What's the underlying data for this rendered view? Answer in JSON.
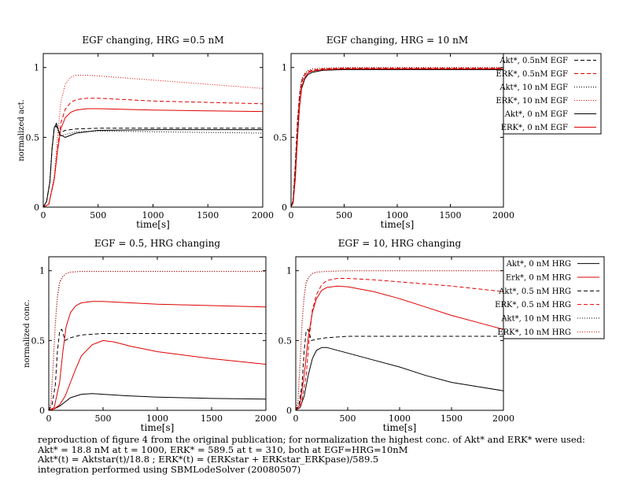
{
  "colors": {
    "black": "#000000",
    "red": "#e00000"
  },
  "caption": {
    "line1": "reproduction of figure 4 from the original publication; for normalization the highest conc. of Akt* and ERK* were used:",
    "line2": "Akt* = 18.8 nM at t = 1000, ERK* = 589.5 at t = 310, both at EGF=HRG=10nM",
    "line3": "Akt*(t) = Aktstar(t)/18.8 ; ERK*(t) = (ERKstar + ERKstar_ERKpase)/589.5",
    "line4": "integration performed using SBMLodeSolver (20080507)"
  },
  "chart_data": [
    {
      "type": "line",
      "title": "EGF changing, HRG =0.5 nM",
      "xlabel": "time[s]",
      "ylabel": "normalized act.",
      "xlim": [
        0,
        2000
      ],
      "ylim": [
        0,
        1.1
      ],
      "xticks": [
        0,
        500,
        1000,
        1500,
        2000
      ],
      "yticks": [
        0,
        0.5,
        1
      ],
      "yticklabels": [
        "0",
        "0.5",
        "1"
      ],
      "legend": "none",
      "series": [
        {
          "name": "Akt*, 0.5nM EGF",
          "color": "#000000",
          "style": "dashed",
          "x": [
            0,
            30,
            60,
            80,
            100,
            120,
            150,
            200,
            300,
            500,
            1000,
            1500,
            2000
          ],
          "y": [
            0,
            0.04,
            0.18,
            0.42,
            0.57,
            0.58,
            0.53,
            0.55,
            0.56,
            0.565,
            0.565,
            0.565,
            0.565
          ]
        },
        {
          "name": "ERK*, 0.5nM EGF",
          "color": "#e00000",
          "style": "dashed",
          "x": [
            0,
            50,
            100,
            130,
            160,
            200,
            250,
            300,
            400,
            500,
            750,
            1000,
            1500,
            2000
          ],
          "y": [
            0,
            0.02,
            0.2,
            0.42,
            0.6,
            0.7,
            0.75,
            0.77,
            0.78,
            0.78,
            0.77,
            0.76,
            0.75,
            0.74
          ]
        },
        {
          "name": "Akt*, 10 nM EGF",
          "color": "#000000",
          "style": "dotted",
          "x": [
            0,
            30,
            60,
            80,
            100,
            120,
            150,
            200,
            300,
            500,
            1000,
            1500,
            2000
          ],
          "y": [
            0,
            0.04,
            0.18,
            0.42,
            0.57,
            0.58,
            0.51,
            0.52,
            0.54,
            0.545,
            0.54,
            0.535,
            0.53
          ]
        },
        {
          "name": "ERK*, 10 nM EGF",
          "color": "#e00000",
          "style": "dotted",
          "x": [
            0,
            50,
            100,
            130,
            160,
            200,
            250,
            300,
            400,
            500,
            750,
            1000,
            1500,
            2000
          ],
          "y": [
            0,
            0.02,
            0.22,
            0.5,
            0.75,
            0.88,
            0.93,
            0.945,
            0.945,
            0.94,
            0.925,
            0.91,
            0.88,
            0.85
          ]
        },
        {
          "name": "Akt*, 0 nM EGF",
          "color": "#000000",
          "style": "solid",
          "x": [
            0,
            30,
            60,
            80,
            100,
            120,
            150,
            200,
            300,
            500,
            1000,
            1500,
            2000
          ],
          "y": [
            0,
            0.04,
            0.18,
            0.42,
            0.57,
            0.6,
            0.52,
            0.5,
            0.53,
            0.55,
            0.555,
            0.555,
            0.555
          ]
        },
        {
          "name": "ERK*, 0 nM EGF",
          "color": "#e00000",
          "style": "solid",
          "x": [
            0,
            50,
            100,
            130,
            160,
            200,
            250,
            300,
            400,
            500,
            750,
            1000,
            1500,
            2000
          ],
          "y": [
            0,
            0.02,
            0.2,
            0.4,
            0.56,
            0.64,
            0.68,
            0.695,
            0.705,
            0.705,
            0.7,
            0.695,
            0.69,
            0.685
          ]
        }
      ]
    },
    {
      "type": "line",
      "title": "EGF changing, HRG = 10 nM",
      "xlabel": "time[s]",
      "ylabel": "",
      "xlim": [
        0,
        2000
      ],
      "ylim": [
        0,
        1.1
      ],
      "xticks": [
        0,
        500,
        1000,
        1500,
        2000
      ],
      "yticks": [
        0,
        0.5,
        1
      ],
      "yticklabels": [
        "0",
        "0.5",
        "1"
      ],
      "legend": "right",
      "series": [
        {
          "name": "Akt*, 0.5nM EGF",
          "color": "#000000",
          "style": "dashed",
          "x": [
            0,
            20,
            40,
            60,
            80,
            100,
            130,
            160,
            200,
            300,
            500,
            1000,
            2000
          ],
          "y": [
            0,
            0.05,
            0.3,
            0.6,
            0.8,
            0.9,
            0.95,
            0.97,
            0.98,
            0.99,
            0.995,
            0.995,
            0.995
          ]
        },
        {
          "name": "ERK*, 0.5nM EGF",
          "color": "#e00000",
          "style": "dashed",
          "x": [
            0,
            20,
            40,
            60,
            80,
            100,
            130,
            160,
            200,
            300,
            500,
            1000,
            2000
          ],
          "y": [
            0,
            0.04,
            0.25,
            0.55,
            0.78,
            0.89,
            0.95,
            0.97,
            0.98,
            0.99,
            0.995,
            0.995,
            0.995
          ]
        },
        {
          "name": "Akt*, 10 nM EGF",
          "color": "#000000",
          "style": "dotted",
          "x": [
            0,
            20,
            40,
            60,
            80,
            100,
            130,
            160,
            200,
            300,
            500,
            1000,
            2000
          ],
          "y": [
            0,
            0.06,
            0.33,
            0.63,
            0.82,
            0.92,
            0.96,
            0.98,
            0.99,
            0.995,
            1.0,
            1.0,
            1.0
          ]
        },
        {
          "name": "ERK*, 10 nM EGF",
          "color": "#e00000",
          "style": "dotted",
          "x": [
            0,
            20,
            40,
            60,
            80,
            100,
            130,
            160,
            200,
            300,
            500,
            1000,
            2000
          ],
          "y": [
            0,
            0.05,
            0.3,
            0.6,
            0.8,
            0.91,
            0.96,
            0.98,
            0.99,
            0.995,
            1.0,
            1.0,
            1.0
          ]
        },
        {
          "name": "Akt*, 0 nM EGF",
          "color": "#000000",
          "style": "solid",
          "x": [
            0,
            20,
            40,
            60,
            80,
            100,
            130,
            160,
            200,
            300,
            500,
            1000,
            2000
          ],
          "y": [
            0,
            0.04,
            0.22,
            0.5,
            0.72,
            0.85,
            0.92,
            0.95,
            0.965,
            0.98,
            0.985,
            0.985,
            0.985
          ]
        },
        {
          "name": "ERK*, 0 nM EGF",
          "color": "#e00000",
          "style": "solid",
          "x": [
            0,
            20,
            40,
            60,
            80,
            100,
            130,
            160,
            200,
            300,
            500,
            1000,
            2000
          ],
          "y": [
            0,
            0.03,
            0.2,
            0.48,
            0.72,
            0.86,
            0.93,
            0.96,
            0.975,
            0.985,
            0.99,
            0.99,
            0.99
          ]
        }
      ]
    },
    {
      "type": "line",
      "title": "EGF = 0.5, HRG changing",
      "xlabel": "time[s]",
      "ylabel": "normalized conc.",
      "xlim": [
        0,
        2000
      ],
      "ylim": [
        0,
        1.1
      ],
      "xticks": [
        0,
        500,
        1000,
        1500,
        2000
      ],
      "yticks": [
        0,
        0.5,
        1
      ],
      "yticklabels": [
        "0",
        "0.5",
        "1"
      ],
      "legend": "none",
      "series": [
        {
          "name": "Akt*, 0 nM HRG",
          "color": "#000000",
          "style": "solid",
          "x": [
            0,
            50,
            100,
            150,
            200,
            300,
            400,
            500,
            700,
            1000,
            1500,
            2000
          ],
          "y": [
            0,
            0.01,
            0.03,
            0.06,
            0.09,
            0.115,
            0.12,
            0.115,
            0.105,
            0.095,
            0.085,
            0.08
          ]
        },
        {
          "name": "Erk*, 0 nM HRG",
          "color": "#e00000",
          "style": "solid",
          "x": [
            0,
            50,
            100,
            150,
            200,
            250,
            300,
            400,
            500,
            600,
            750,
            1000,
            1500,
            2000
          ],
          "y": [
            0,
            0.01,
            0.04,
            0.1,
            0.2,
            0.3,
            0.39,
            0.47,
            0.5,
            0.49,
            0.46,
            0.42,
            0.37,
            0.33
          ]
        },
        {
          "name": "Akt*, 0.5 nM HRG",
          "color": "#000000",
          "style": "dashed",
          "x": [
            0,
            30,
            60,
            80,
            100,
            120,
            150,
            200,
            300,
            500,
            1000,
            2000
          ],
          "y": [
            0,
            0.04,
            0.18,
            0.42,
            0.57,
            0.58,
            0.5,
            0.52,
            0.54,
            0.55,
            0.55,
            0.55
          ]
        },
        {
          "name": "ERK*, 0.5 nM HRG",
          "color": "#e00000",
          "style": "solid",
          "x": [
            0,
            50,
            100,
            130,
            160,
            200,
            250,
            300,
            400,
            500,
            750,
            1000,
            1500,
            2000
          ],
          "y": [
            0,
            0.02,
            0.2,
            0.42,
            0.6,
            0.7,
            0.75,
            0.77,
            0.78,
            0.78,
            0.77,
            0.76,
            0.75,
            0.74
          ]
        },
        {
          "name": "Akt*, 10 nM HRG",
          "color": "#000000",
          "style": "dotted",
          "x": [
            0,
            20,
            40,
            60,
            80,
            100,
            130,
            160,
            200,
            300,
            500,
            1000,
            2000
          ],
          "y": [
            0,
            0.06,
            0.33,
            0.63,
            0.82,
            0.92,
            0.96,
            0.98,
            0.99,
            0.995,
            0.995,
            0.995,
            0.995
          ]
        },
        {
          "name": "ERK*, 10 nM HRG",
          "color": "#e00000",
          "style": "dotted",
          "x": [
            0,
            20,
            40,
            60,
            80,
            100,
            130,
            160,
            200,
            300,
            500,
            1000,
            2000
          ],
          "y": [
            0,
            0.05,
            0.3,
            0.6,
            0.8,
            0.91,
            0.96,
            0.98,
            0.99,
            0.995,
            0.995,
            0.995,
            0.995
          ]
        }
      ]
    },
    {
      "type": "line",
      "title": "EGF = 10, HRG changing",
      "xlabel": "time[s]",
      "ylabel": "",
      "xlim": [
        0,
        2000
      ],
      "ylim": [
        0,
        1.1
      ],
      "xticks": [
        0,
        500,
        1000,
        1500,
        2000
      ],
      "yticks": [
        0,
        0.5,
        1
      ],
      "yticklabels": [
        "0",
        "0.5",
        "1"
      ],
      "legend": "right",
      "series": [
        {
          "name": "Akt*, 0 nM HRG",
          "color": "#000000",
          "style": "solid",
          "x": [
            0,
            40,
            80,
            120,
            160,
            200,
            250,
            300,
            400,
            500,
            750,
            1000,
            1250,
            1500,
            1750,
            2000
          ],
          "y": [
            0,
            0.02,
            0.1,
            0.25,
            0.37,
            0.43,
            0.45,
            0.45,
            0.43,
            0.41,
            0.36,
            0.31,
            0.25,
            0.2,
            0.17,
            0.14
          ]
        },
        {
          "name": "Erk*, 0 nM HRG",
          "color": "#e00000",
          "style": "solid",
          "x": [
            0,
            40,
            80,
            120,
            160,
            200,
            250,
            300,
            400,
            500,
            750,
            1000,
            1250,
            1500,
            1750,
            2000
          ],
          "y": [
            0,
            0.04,
            0.25,
            0.52,
            0.7,
            0.8,
            0.86,
            0.88,
            0.89,
            0.885,
            0.85,
            0.8,
            0.74,
            0.68,
            0.63,
            0.58
          ]
        },
        {
          "name": "Akt*, 0.5 nM HRG",
          "color": "#000000",
          "style": "dashed",
          "x": [
            0,
            30,
            60,
            80,
            100,
            120,
            150,
            200,
            300,
            500,
            1000,
            2000
          ],
          "y": [
            0,
            0.04,
            0.18,
            0.42,
            0.57,
            0.58,
            0.5,
            0.51,
            0.52,
            0.53,
            0.53,
            0.53
          ]
        },
        {
          "name": "ERK*, 0.5 nM HRG",
          "color": "#e00000",
          "style": "dashed",
          "x": [
            0,
            50,
            100,
            130,
            160,
            200,
            250,
            300,
            400,
            500,
            750,
            1000,
            1500,
            2000
          ],
          "y": [
            0,
            0.03,
            0.25,
            0.52,
            0.72,
            0.83,
            0.9,
            0.93,
            0.945,
            0.945,
            0.935,
            0.92,
            0.89,
            0.85
          ]
        },
        {
          "name": "Akt*, 10 nM HRG",
          "color": "#000000",
          "style": "dotted",
          "x": [
            0,
            20,
            40,
            60,
            80,
            100,
            130,
            160,
            200,
            300,
            500,
            1000,
            2000
          ],
          "y": [
            0,
            0.06,
            0.33,
            0.63,
            0.82,
            0.92,
            0.96,
            0.98,
            0.99,
            0.995,
            1.0,
            1.0,
            1.0
          ]
        },
        {
          "name": "ERK*, 10 nM HRG",
          "color": "#e00000",
          "style": "dotted",
          "x": [
            0,
            20,
            40,
            60,
            80,
            100,
            130,
            160,
            200,
            300,
            500,
            1000,
            2000
          ],
          "y": [
            0,
            0.05,
            0.3,
            0.6,
            0.8,
            0.91,
            0.96,
            0.98,
            0.99,
            0.995,
            1.0,
            1.0,
            1.0
          ]
        }
      ]
    }
  ]
}
